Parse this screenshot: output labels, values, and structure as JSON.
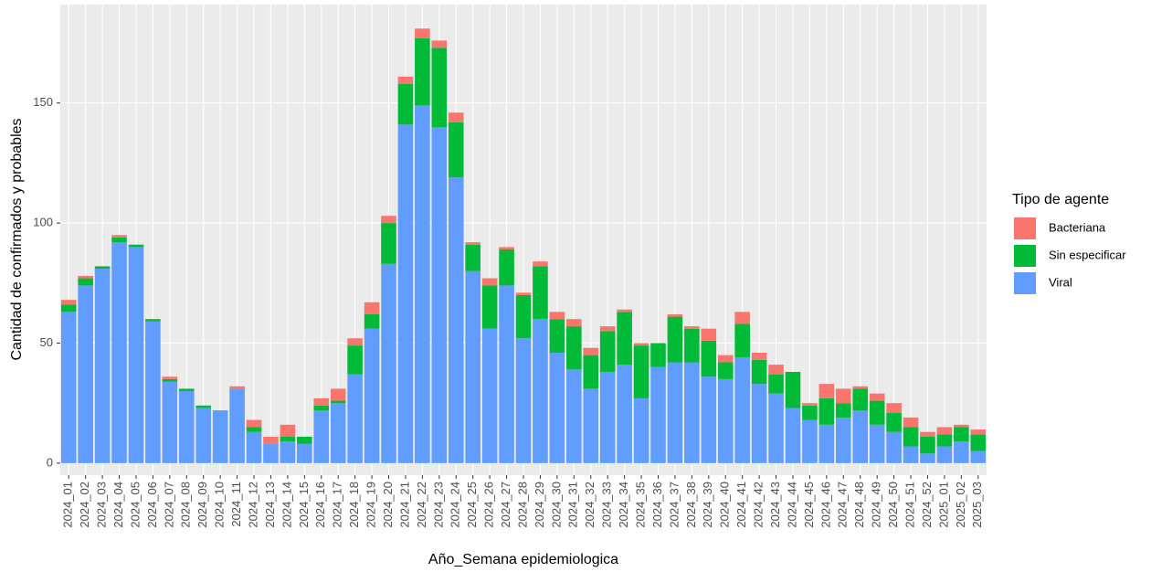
{
  "chart_data": {
    "type": "stacked-bar",
    "x_label": "Año_Semana epidemiologica",
    "y_label": "Cantidad de confirmados y probables",
    "legend_title": "Tipo de agente",
    "categories": [
      "2024_01",
      "2024_02",
      "2024_03",
      "2024_04",
      "2024_05",
      "2024_06",
      "2024_07",
      "2024_08",
      "2024_09",
      "2024_10",
      "2024_11",
      "2024_12",
      "2024_13",
      "2024_14",
      "2024_15",
      "2024_16",
      "2024_17",
      "2024_18",
      "2024_19",
      "2024_20",
      "2024_21",
      "2024_22",
      "2024_23",
      "2024_24",
      "2024_25",
      "2024_26",
      "2024_27",
      "2024_28",
      "2024_29",
      "2024_30",
      "2024_31",
      "2024_32",
      "2024_33",
      "2024_34",
      "2024_35",
      "2024_36",
      "2024_37",
      "2024_38",
      "2024_39",
      "2024_40",
      "2024_41",
      "2024_42",
      "2024_43",
      "2024_44",
      "2024_45",
      "2024_46",
      "2024_47",
      "2024_48",
      "2024_49",
      "2024_50",
      "2024_51",
      "2024_52",
      "2025_01",
      "2025_02",
      "2025_03"
    ],
    "series": [
      {
        "name": "Bacteriana",
        "color": "#F8766D",
        "values": [
          2,
          1,
          0,
          1,
          0,
          0,
          1,
          0,
          0,
          0,
          1,
          3,
          3,
          5,
          0,
          3,
          5,
          3,
          5,
          3,
          3,
          4,
          3,
          4,
          1,
          3,
          1,
          1,
          2,
          3,
          3,
          3,
          2,
          1,
          1,
          0,
          1,
          1,
          5,
          3,
          5,
          3,
          4,
          0,
          1,
          6,
          6,
          1,
          3,
          4,
          4,
          2,
          3,
          1,
          2
        ]
      },
      {
        "name": "Sin especificar",
        "color": "#00BA38",
        "values": [
          3,
          3,
          1,
          2,
          1,
          1,
          1,
          1,
          1,
          0,
          0,
          2,
          0,
          2,
          3,
          2,
          1,
          12,
          6,
          17,
          17,
          28,
          33,
          23,
          11,
          18,
          15,
          18,
          22,
          14,
          18,
          14,
          17,
          22,
          22,
          10,
          19,
          14,
          15,
          7,
          14,
          10,
          8,
          15,
          6,
          11,
          6,
          9,
          10,
          8,
          8,
          7,
          5,
          6,
          7
        ]
      },
      {
        "name": "Viral",
        "color": "#619CFF",
        "values": [
          63,
          74,
          81,
          92,
          90,
          59,
          34,
          30,
          23,
          22,
          31,
          13,
          8,
          9,
          8,
          22,
          25,
          37,
          56,
          83,
          141,
          149,
          140,
          119,
          80,
          56,
          74,
          52,
          60,
          46,
          39,
          31,
          38,
          41,
          27,
          40,
          42,
          42,
          36,
          35,
          44,
          33,
          29,
          23,
          18,
          16,
          19,
          22,
          16,
          13,
          7,
          4,
          7,
          9,
          5
        ]
      }
    ],
    "ylim": [
      -5,
      191
    ],
    "yticks": [
      0,
      50,
      100,
      150
    ],
    "grid": true
  }
}
